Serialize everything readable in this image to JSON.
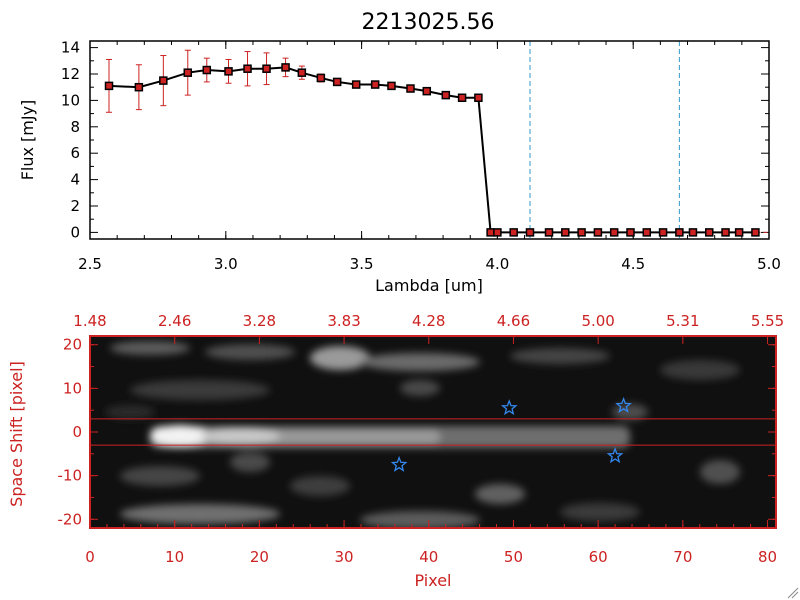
{
  "colors": {
    "red": "#cc2222",
    "black": "#000000",
    "cyan": "#3399cc",
    "star": "#3388ee"
  },
  "chart_data": [
    {
      "type": "line",
      "title": "2213025.56",
      "xlabel": "Lambda [um]",
      "ylabel": "Flux [mJy]",
      "xlim": [
        2.5,
        5.0
      ],
      "ylim": [
        -0.5,
        14.5
      ],
      "xticks": [
        "2.5",
        "3.0",
        "3.5",
        "4.0",
        "4.5",
        "5.0"
      ],
      "yticks": [
        "0",
        "2",
        "4",
        "6",
        "8",
        "10",
        "12",
        "14"
      ],
      "vlines": [
        4.12,
        4.67
      ],
      "series": [
        {
          "x": [
            2.57,
            2.68,
            2.77,
            2.86,
            2.93,
            3.01,
            3.08,
            3.15,
            3.22,
            3.28,
            3.35,
            3.41,
            3.48,
            3.55,
            3.61,
            3.68,
            3.74,
            3.81,
            3.87,
            3.93,
            3.975,
            4.0,
            4.06,
            4.12,
            4.19,
            4.25,
            4.31,
            4.37,
            4.43,
            4.49,
            4.55,
            4.61,
            4.67,
            4.72,
            4.78,
            4.84,
            4.89,
            4.95
          ],
          "y": [
            11.1,
            11.0,
            11.5,
            12.1,
            12.3,
            12.2,
            12.4,
            12.4,
            12.5,
            12.1,
            11.7,
            11.4,
            11.2,
            11.2,
            11.1,
            10.9,
            10.7,
            10.4,
            10.2,
            10.2,
            0,
            0,
            0,
            0,
            0,
            0,
            0,
            0,
            0,
            0,
            0,
            0,
            0,
            0,
            0,
            0,
            0,
            0
          ],
          "yerr": [
            2.0,
            1.7,
            1.9,
            1.7,
            0.9,
            0.9,
            1.3,
            1.2,
            0.7,
            0.5,
            0.3,
            0,
            0,
            0,
            0,
            0,
            0,
            0,
            0,
            0,
            0,
            0,
            0,
            0,
            0,
            0,
            0,
            0,
            0,
            0,
            0,
            0,
            0,
            0,
            0,
            0,
            0,
            0
          ]
        }
      ]
    },
    {
      "type": "heatmap",
      "xlabel": "Pixel",
      "ylabel": "Space Shift [pixel]",
      "xlim": [
        0,
        81
      ],
      "ylim": [
        -22,
        22
      ],
      "xticks": [
        "0",
        "10",
        "20",
        "30",
        "40",
        "50",
        "60",
        "70",
        "80"
      ],
      "yticks": [
        "20",
        "10",
        "0",
        "-10",
        "-20"
      ],
      "top_xticks": [
        "1.48",
        "2.46",
        "3.28",
        "3.83",
        "4.28",
        "4.66",
        "5.00",
        "5.31",
        "5.55"
      ],
      "hlines": [
        3,
        -3
      ],
      "stars": [
        {
          "x": 49.5,
          "y": 5.5
        },
        {
          "x": 63,
          "y": 6
        },
        {
          "x": 36.5,
          "y": -7.5
        },
        {
          "x": 62,
          "y": -5.5
        }
      ]
    }
  ]
}
